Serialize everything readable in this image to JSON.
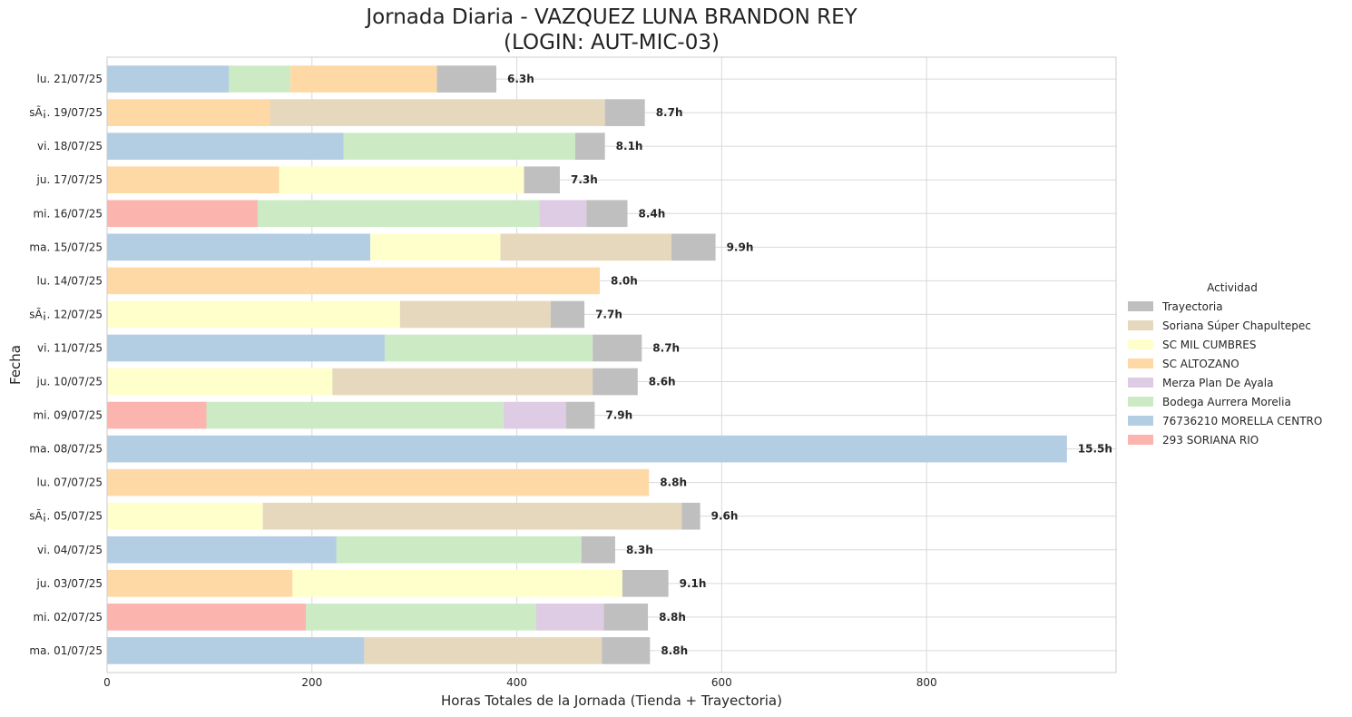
{
  "chart_data": {
    "type": "bar",
    "orientation": "horizontal",
    "stacked": true,
    "title": "Jornada Diaria - VAZQUEZ LUNA BRANDON REY",
    "subtitle": "(LOGIN: AUT-MIC-03)",
    "xlabel": "Horas Totales de la Jornada (Tienda + Trayectoria)",
    "ylabel": "Fecha",
    "xlim": [
      0,
      985
    ],
    "xticks": [
      0,
      200,
      400,
      600,
      800
    ],
    "grid": true,
    "legend_title": "Actividad",
    "legend_position": "right",
    "legend": [
      {
        "name": "Trayectoria",
        "color": "#bfbfbf"
      },
      {
        "name": "Soriana Súper Chapultepec",
        "color": "#e5d8bd"
      },
      {
        "name": "SC MIL CUMBRES",
        "color": "#ffffcc"
      },
      {
        "name": "SC ALTOZANO",
        "color": "#fed9a6"
      },
      {
        "name": "Merza Plan De Ayala",
        "color": "#decbe4"
      },
      {
        "name": "Bodega Aurrera Morelia",
        "color": "#ccebc5"
      },
      {
        "name": "76736210 MORELLA CENTRO",
        "color": "#b3cde3"
      },
      {
        "name": "293 SORIANA RIO",
        "color": "#fbb4ae"
      }
    ],
    "categories": [
      "lu. 21/07/25",
      "sÃ¡. 19/07/25",
      "vi. 18/07/25",
      "ju. 17/07/25",
      "mi. 16/07/25",
      "ma. 15/07/25",
      "lu. 14/07/25",
      "sÃ¡. 12/07/25",
      "vi. 11/07/25",
      "ju. 10/07/25",
      "mi. 09/07/25",
      "ma. 08/07/25",
      "lu. 07/07/25",
      "sÃ¡. 05/07/25",
      "vi. 04/07/25",
      "ju. 03/07/25",
      "mi. 02/07/25",
      "ma. 01/07/25"
    ],
    "bars": [
      {
        "total_label": "6.3h",
        "segments": [
          [
            "76736210 MORELLA CENTRO",
            119
          ],
          [
            "Bodega Aurrera Morelia",
            60
          ],
          [
            "SC ALTOZANO",
            143
          ],
          [
            "Trayectoria",
            58
          ]
        ]
      },
      {
        "total_label": "8.7h",
        "segments": [
          [
            "SC ALTOZANO",
            159
          ],
          [
            "Soriana Súper Chapultepec",
            327
          ],
          [
            "Trayectoria",
            39
          ]
        ]
      },
      {
        "total_label": "8.1h",
        "segments": [
          [
            "76736210 MORELLA CENTRO",
            231
          ],
          [
            "Bodega Aurrera Morelia",
            226
          ],
          [
            "Trayectoria",
            29
          ]
        ]
      },
      {
        "total_label": "7.3h",
        "segments": [
          [
            "SC ALTOZANO",
            168
          ],
          [
            "SC MIL CUMBRES",
            239
          ],
          [
            "Trayectoria",
            35
          ]
        ]
      },
      {
        "total_label": "8.4h",
        "segments": [
          [
            "293 SORIANA RIO",
            147
          ],
          [
            "Bodega Aurrera Morelia",
            275
          ],
          [
            "Merza Plan De Ayala",
            46
          ],
          [
            "Trayectoria",
            40
          ]
        ]
      },
      {
        "total_label": "9.9h",
        "segments": [
          [
            "76736210 MORELLA CENTRO",
            257
          ],
          [
            "SC MIL CUMBRES",
            127
          ],
          [
            "Soriana Súper Chapultepec",
            167
          ],
          [
            "Trayectoria",
            43
          ]
        ]
      },
      {
        "total_label": "8.0h",
        "segments": [
          [
            "SC ALTOZANO",
            481
          ]
        ]
      },
      {
        "total_label": "7.7h",
        "segments": [
          [
            "SC MIL CUMBRES",
            286
          ],
          [
            "Soriana Súper Chapultepec",
            147
          ],
          [
            "Trayectoria",
            33
          ]
        ]
      },
      {
        "total_label": "8.7h",
        "segments": [
          [
            "76736210 MORELLA CENTRO",
            271
          ],
          [
            "Bodega Aurrera Morelia",
            203
          ],
          [
            "Trayectoria",
            48
          ]
        ]
      },
      {
        "total_label": "8.6h",
        "segments": [
          [
            "SC MIL CUMBRES",
            220
          ],
          [
            "Soriana Súper Chapultepec",
            254
          ],
          [
            "Trayectoria",
            44
          ]
        ]
      },
      {
        "total_label": "7.9h",
        "segments": [
          [
            "293 SORIANA RIO",
            97
          ],
          [
            "Bodega Aurrera Morelia",
            290
          ],
          [
            "Merza Plan De Ayala",
            61
          ],
          [
            "Trayectoria",
            28
          ]
        ]
      },
      {
        "total_label": "15.5h",
        "segments": [
          [
            "76736210 MORELLA CENTRO",
            937
          ]
        ]
      },
      {
        "total_label": "8.8h",
        "segments": [
          [
            "SC ALTOZANO",
            529
          ]
        ]
      },
      {
        "total_label": "9.6h",
        "segments": [
          [
            "SC MIL CUMBRES",
            152
          ],
          [
            "Soriana Súper Chapultepec",
            409
          ],
          [
            "Trayectoria",
            18
          ]
        ]
      },
      {
        "total_label": "8.3h",
        "segments": [
          [
            "76736210 MORELLA CENTRO",
            224
          ],
          [
            "Bodega Aurrera Morelia",
            239
          ],
          [
            "Trayectoria",
            33
          ]
        ]
      },
      {
        "total_label": "9.1h",
        "segments": [
          [
            "SC ALTOZANO",
            181
          ],
          [
            "SC MIL CUMBRES",
            322
          ],
          [
            "Trayectoria",
            45
          ]
        ]
      },
      {
        "total_label": "8.8h",
        "segments": [
          [
            "293 SORIANA RIO",
            194
          ],
          [
            "Bodega Aurrera Morelia",
            225
          ],
          [
            "Merza Plan De Ayala",
            66
          ],
          [
            "Trayectoria",
            43
          ]
        ]
      },
      {
        "total_label": "8.8h",
        "segments": [
          [
            "76736210 MORELLA CENTRO",
            251
          ],
          [
            "Soriana Súper Chapultepec",
            232
          ],
          [
            "Trayectoria",
            47
          ]
        ]
      }
    ]
  }
}
